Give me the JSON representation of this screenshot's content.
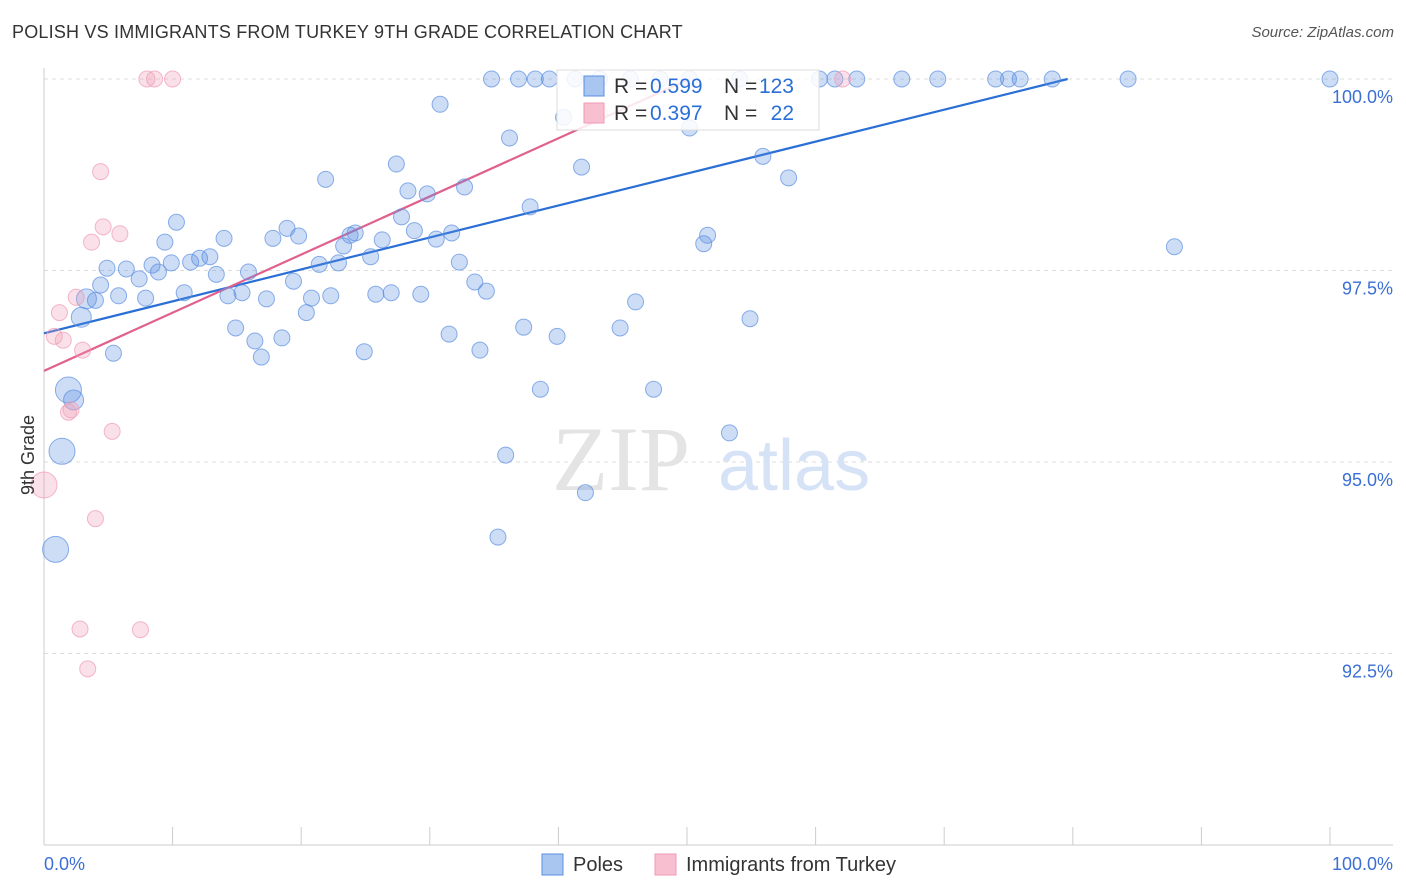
{
  "title": "POLISH VS IMMIGRANTS FROM TURKEY 9TH GRADE CORRELATION CHART",
  "source": "Source: ZipAtlas.com",
  "watermark": "ZIPatlas",
  "chart_data": {
    "type": "scatter",
    "title": "POLISH VS IMMIGRANTS FROM TURKEY 9TH GRADE CORRELATION CHART",
    "xlabel": "",
    "ylabel": "9th Grade",
    "xlim": [
      0,
      100
    ],
    "ylim": [
      90,
      100
    ],
    "x_tick_labels": {
      "min": "0.0%",
      "max": "100.0%"
    },
    "y_ticks": [
      {
        "value": 100,
        "label": "100.0%"
      },
      {
        "value": 97.5,
        "label": "97.5%"
      },
      {
        "value": 95,
        "label": "95.0%"
      },
      {
        "value": 92.5,
        "label": "92.5%"
      }
    ],
    "grid": true,
    "legend_placement": "top-center",
    "stats": [
      {
        "r_label": "R =",
        "r": "0.599",
        "n_label": "N =",
        "n": "123"
      },
      {
        "r_label": "R =",
        "r": "0.397",
        "n_label": "N =",
        "n": "22"
      }
    ],
    "series": [
      {
        "name": "Poles",
        "color": "#5b8fe0",
        "line_color": "#2a6fd6",
        "trend": [
          [
            0,
            96.68
          ],
          [
            79.6,
            100
          ]
        ],
        "points": [
          [
            34.8,
            100,
            1
          ],
          [
            36.9,
            100,
            1
          ],
          [
            38.2,
            100,
            1
          ],
          [
            39.3,
            100,
            1
          ],
          [
            41.3,
            100,
            1
          ],
          [
            43.2,
            100,
            1
          ],
          [
            45.6,
            100,
            1
          ],
          [
            47.9,
            100,
            1
          ],
          [
            50.2,
            100,
            1
          ],
          [
            54.1,
            100,
            1
          ],
          [
            60.3,
            100,
            1
          ],
          [
            61.5,
            100,
            1
          ],
          [
            63.2,
            100,
            1
          ],
          [
            66.7,
            100,
            1
          ],
          [
            69.5,
            100,
            1
          ],
          [
            74.0,
            100,
            1
          ],
          [
            75.0,
            100,
            1
          ],
          [
            75.9,
            100,
            1
          ],
          [
            78.4,
            100,
            1
          ],
          [
            84.3,
            100,
            1
          ],
          [
            100,
            100,
            1
          ],
          [
            30.8,
            99.67,
            1
          ],
          [
            40.4,
            99.5,
            1
          ],
          [
            36.2,
            99.23,
            1
          ],
          [
            50.2,
            99.36,
            1
          ],
          [
            27.4,
            98.89,
            1
          ],
          [
            55.9,
            98.99,
            1
          ],
          [
            41.8,
            98.85,
            1
          ],
          [
            21.9,
            98.69,
            1
          ],
          [
            57.9,
            98.71,
            1
          ],
          [
            28.3,
            98.54,
            1
          ],
          [
            29.8,
            98.5,
            1
          ],
          [
            32.7,
            98.59,
            1
          ],
          [
            37.8,
            98.33,
            1
          ],
          [
            10.3,
            98.13,
            1
          ],
          [
            27.8,
            98.2,
            1
          ],
          [
            18.9,
            98.05,
            1
          ],
          [
            28.8,
            98.02,
            1
          ],
          [
            14.0,
            97.92,
            1
          ],
          [
            17.8,
            97.92,
            1
          ],
          [
            19.8,
            97.95,
            1
          ],
          [
            23.8,
            97.96,
            1
          ],
          [
            24.2,
            97.99,
            1
          ],
          [
            26.3,
            97.9,
            1
          ],
          [
            30.5,
            97.91,
            1
          ],
          [
            31.7,
            97.99,
            1
          ],
          [
            51.6,
            97.96,
            1
          ],
          [
            51.3,
            97.85,
            1
          ],
          [
            87.9,
            97.81,
            1
          ],
          [
            9.4,
            97.87,
            1
          ],
          [
            23.3,
            97.82,
            1
          ],
          [
            25.4,
            97.68,
            1
          ],
          [
            32.3,
            97.61,
            1
          ],
          [
            8.4,
            97.57,
            1
          ],
          [
            9.9,
            97.6,
            1
          ],
          [
            11.4,
            97.61,
            1
          ],
          [
            12.9,
            97.68,
            1
          ],
          [
            12.1,
            97.66,
            1
          ],
          [
            21.4,
            97.58,
            1
          ],
          [
            22.9,
            97.6,
            1
          ],
          [
            4.9,
            97.53,
            1
          ],
          [
            6.4,
            97.52,
            1
          ],
          [
            7.4,
            97.39,
            1
          ],
          [
            8.9,
            97.48,
            1
          ],
          [
            13.4,
            97.45,
            1
          ],
          [
            15.9,
            97.48,
            1
          ],
          [
            19.4,
            97.36,
            1
          ],
          [
            33.5,
            97.35,
            1
          ],
          [
            34.4,
            97.23,
            1
          ],
          [
            4.4,
            97.31,
            1
          ],
          [
            3.3,
            97.13,
            2
          ],
          [
            4.0,
            97.11,
            1
          ],
          [
            5.8,
            97.17,
            1
          ],
          [
            7.9,
            97.14,
            1
          ],
          [
            10.9,
            97.21,
            1
          ],
          [
            14.3,
            97.17,
            1
          ],
          [
            15.4,
            97.21,
            1
          ],
          [
            17.3,
            97.13,
            1
          ],
          [
            20.8,
            97.14,
            1
          ],
          [
            22.3,
            97.17,
            1
          ],
          [
            25.8,
            97.19,
            1
          ],
          [
            27.0,
            97.21,
            1
          ],
          [
            29.3,
            97.19,
            1
          ],
          [
            46.0,
            97.09,
            1
          ],
          [
            20.4,
            96.95,
            1
          ],
          [
            2.9,
            96.89,
            2
          ],
          [
            14.9,
            96.75,
            1
          ],
          [
            16.4,
            96.58,
            1
          ],
          [
            18.5,
            96.62,
            1
          ],
          [
            31.5,
            96.67,
            1
          ],
          [
            37.3,
            96.76,
            1
          ],
          [
            39.9,
            96.64,
            1
          ],
          [
            44.8,
            96.75,
            1
          ],
          [
            54.9,
            96.87,
            1
          ],
          [
            5.4,
            96.42,
            1
          ],
          [
            16.9,
            96.37,
            1
          ],
          [
            24.9,
            96.44,
            1
          ],
          [
            33.9,
            96.46,
            1
          ],
          [
            1.9,
            95.94,
            3
          ],
          [
            2.3,
            95.81,
            2
          ],
          [
            38.6,
            95.95,
            1
          ],
          [
            47.4,
            95.95,
            1
          ],
          [
            53.3,
            95.38,
            1
          ],
          [
            1.4,
            95.14,
            3
          ],
          [
            35.9,
            95.09,
            1
          ],
          [
            42.1,
            94.6,
            1
          ],
          [
            0.9,
            93.86,
            3
          ],
          [
            35.3,
            94.02,
            1
          ]
        ]
      },
      {
        "name": "Immigrants from Turkey",
        "color": "#f09ab5",
        "line_color": "#e0608e",
        "trend": [
          [
            0,
            96.19
          ],
          [
            50.2,
            100
          ]
        ],
        "points": [
          [
            8.0,
            100,
            1
          ],
          [
            8.6,
            100,
            1
          ],
          [
            10.0,
            100,
            1
          ],
          [
            62.1,
            100,
            1
          ],
          [
            43.2,
            99.56,
            1
          ],
          [
            4.4,
            98.79,
            1
          ],
          [
            4.6,
            98.07,
            1
          ],
          [
            5.9,
            97.98,
            1
          ],
          [
            3.7,
            97.87,
            1
          ],
          [
            2.5,
            97.15,
            1
          ],
          [
            1.2,
            96.95,
            1
          ],
          [
            0.8,
            96.64,
            1
          ],
          [
            1.5,
            96.59,
            1
          ],
          [
            3.0,
            96.46,
            1
          ],
          [
            1.9,
            95.65,
            1
          ],
          [
            2.1,
            95.68,
            1
          ],
          [
            5.3,
            95.4,
            1
          ],
          [
            0,
            94.7,
            3
          ],
          [
            4.0,
            94.26,
            1
          ],
          [
            2.8,
            92.82,
            1
          ],
          [
            7.5,
            92.81,
            1
          ],
          [
            3.4,
            92.3,
            1
          ]
        ]
      }
    ]
  }
}
